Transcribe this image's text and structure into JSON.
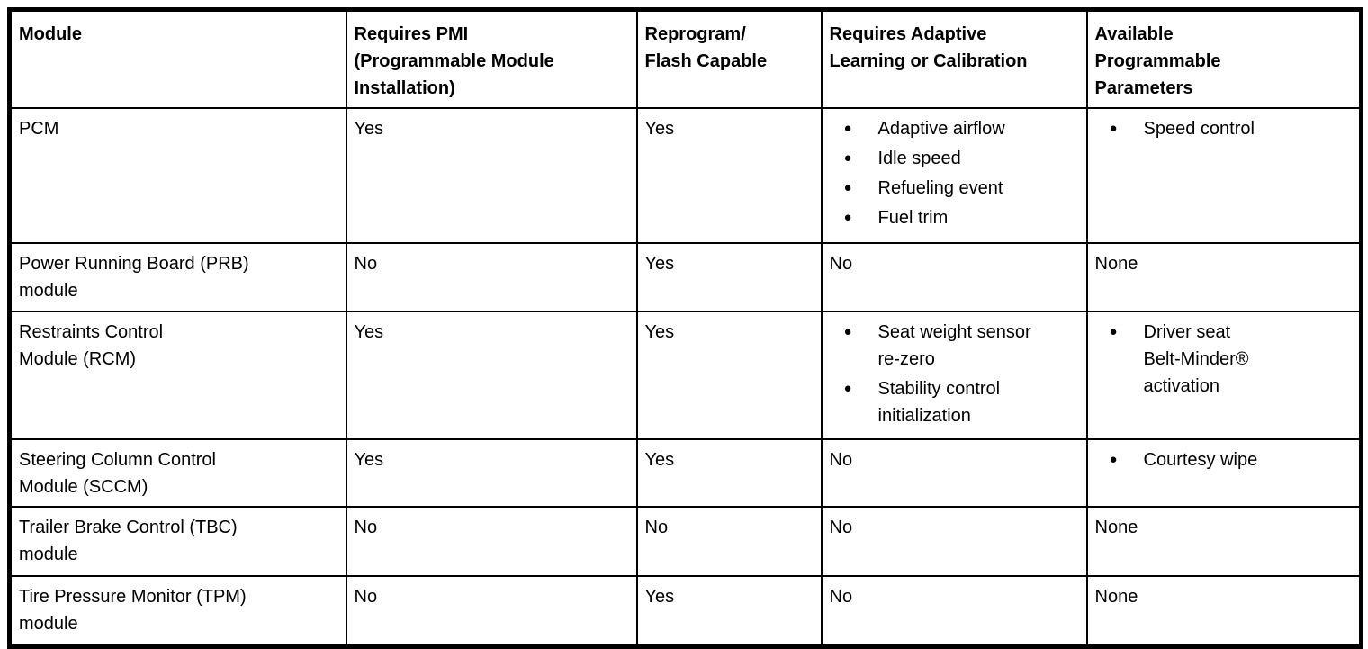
{
  "table": {
    "bullet_icon": "●",
    "colors": {
      "border": "#000000",
      "text": "#000000",
      "background": "#ffffff"
    },
    "columns": [
      {
        "field": "module",
        "label": "Module"
      },
      {
        "field": "requires_pmi",
        "label": "Requires PMI\n(Programmable Module\nInstallation)"
      },
      {
        "field": "reprogram_flash",
        "label": "Reprogram/\nFlash Capable"
      },
      {
        "field": "adaptive_learning",
        "label": "Requires Adaptive\nLearning or Calibration"
      },
      {
        "field": "programmable_parameters",
        "label": "Available\nProgrammable\nParameters"
      }
    ],
    "rows": [
      {
        "module": "PCM",
        "requires_pmi": "Yes",
        "reprogram_flash": "Yes",
        "adaptive_learning": [
          "Adaptive airflow",
          "Idle speed",
          "Refueling event",
          "Fuel trim"
        ],
        "programmable_parameters": [
          "Speed control"
        ]
      },
      {
        "module": "Power Running Board (PRB)\nmodule",
        "requires_pmi": "No",
        "reprogram_flash": "Yes",
        "adaptive_learning": "No",
        "programmable_parameters": "None"
      },
      {
        "module": "Restraints Control\nModule (RCM)",
        "requires_pmi": "Yes",
        "reprogram_flash": "Yes",
        "adaptive_learning": [
          "Seat weight sensor\nre-zero",
          "Stability control\ninitialization"
        ],
        "programmable_parameters": [
          "Driver seat\nBelt-Minder®\nactivation"
        ]
      },
      {
        "module": "Steering Column Control\nModule (SCCM)",
        "requires_pmi": "Yes",
        "reprogram_flash": "Yes",
        "adaptive_learning": "No",
        "programmable_parameters": [
          "Courtesy wipe"
        ]
      },
      {
        "module": "Trailer Brake Control (TBC)\nmodule",
        "requires_pmi": "No",
        "reprogram_flash": "No",
        "adaptive_learning": "No",
        "programmable_parameters": "None"
      },
      {
        "module": "Tire Pressure Monitor (TPM)\nmodule",
        "requires_pmi": "No",
        "reprogram_flash": "Yes",
        "adaptive_learning": "No",
        "programmable_parameters": "None"
      }
    ]
  }
}
